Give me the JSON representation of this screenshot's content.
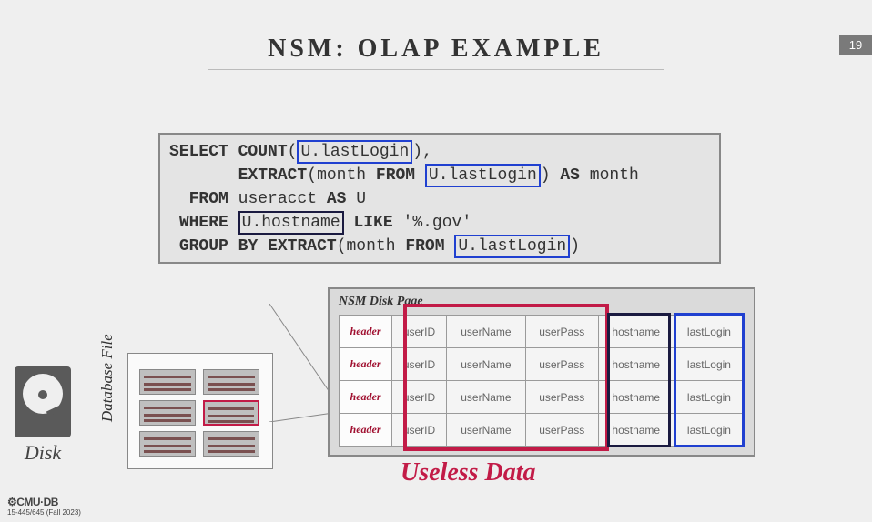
{
  "slide_number": "19",
  "title": "NSM: OLAP EXAMPLE",
  "sql": {
    "select": "SELECT",
    "count": "COUNT",
    "extract": "EXTRACT",
    "month": "month",
    "from_kw": "FROM",
    "as": "AS",
    "month2": "month",
    "from2": "FROM",
    "table": "useracct",
    "as2": "AS",
    "alias": "U",
    "where": "WHERE",
    "like": "LIKE",
    "pattern": "'%.gov'",
    "group": "GROUP",
    "by": "BY",
    "extract2": "EXTRACT",
    "u_lastlogin": "U.lastLogin",
    "u_hostname": "U.hostname"
  },
  "disk_label": "Disk",
  "db_file_label": "Database File",
  "nsm_page_title": "NSM Disk Page",
  "nsm_columns": [
    "header",
    "userID",
    "userName",
    "userPass",
    "hostname",
    "lastLogin"
  ],
  "nsm_row_count": 4,
  "useless_label": "Useless Data",
  "footer_logo": "⚙CMU·DB",
  "footer_text": "15-445/645 (Fall 2023)",
  "colors": {
    "blue_border": "#2040d0",
    "dark_border": "#1a1a40",
    "red_border": "#c21b47",
    "background": "#efefef",
    "sql_box": "#e4e4e4",
    "nsm_box": "#dadada"
  }
}
